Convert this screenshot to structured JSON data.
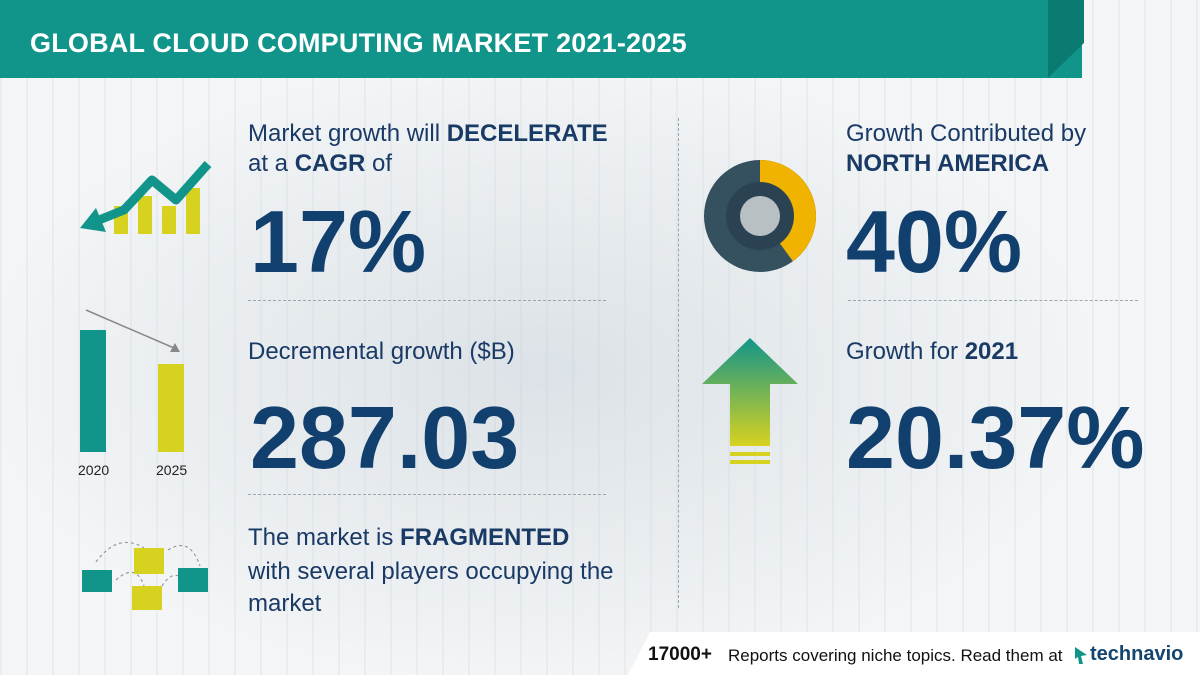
{
  "header": {
    "title": "GLOBAL CLOUD COMPUTING MARKET 2021-2025"
  },
  "cagr": {
    "line1_pre": "Market growth will ",
    "line1_bold": "DECELERATE",
    "line2_pre": "at a ",
    "line2_bold": "CAGR",
    "line2_post": " of",
    "value": "17%"
  },
  "incremental": {
    "label": "Decremental growth ($B)",
    "value": "287.03",
    "bar_2020_label": "2020",
    "bar_2025_label": "2025"
  },
  "fragmented": {
    "line1_pre": "The market is ",
    "line1_bold": "FRAGMENTED",
    "line2": "with several players occupying the",
    "line3": "market"
  },
  "region": {
    "line1": "Growth Contributed by",
    "line2": "NORTH AMERICA",
    "value": "40%",
    "share": 0.4
  },
  "yoy": {
    "label_pre": "Growth for ",
    "label_year": "2021",
    "value": "20.37%"
  },
  "footer": {
    "count": "17000+",
    "text": "Reports covering niche topics. Read them at",
    "brand": "technavio"
  },
  "colors": {
    "teal": "#11958b",
    "navy": "#12406e",
    "yellow": "#d7d21f",
    "slate": "#35505f",
    "gold": "#f0b400"
  }
}
